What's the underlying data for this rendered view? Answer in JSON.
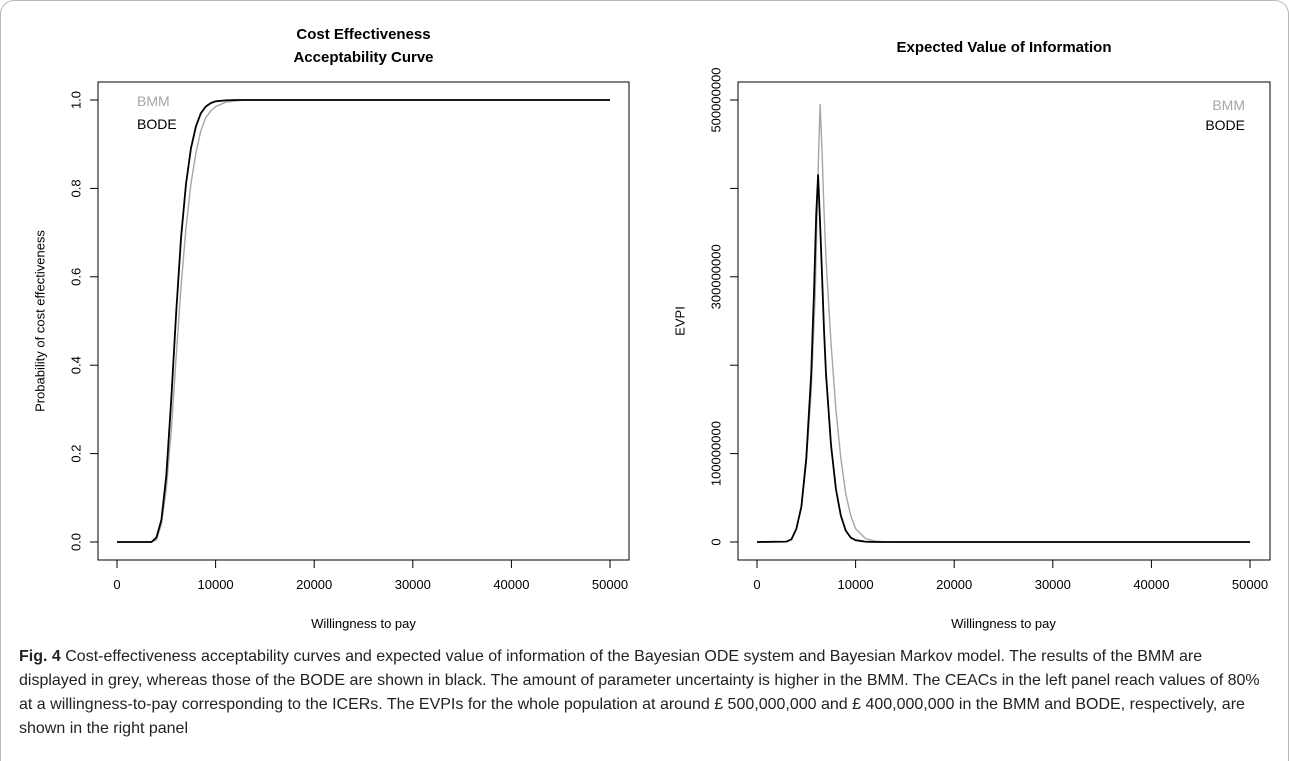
{
  "caption": {
    "label": "Fig. 4",
    "text": "Cost-effectiveness acceptability curves and expected value of information of the Bayesian ODE system and Bayesian Markov model. The results of the BMM are displayed in grey, whereas those of the BODE are shown in black. The amount of parameter uncertainty is higher in the BMM. The CEACs in the left panel reach values of 80% at a willingness-to-pay corresponding to the ICERs. The EVPIs for the whole population at around £ 500,000,000 and £ 400,000,000 in the BMM and BODE, respectively, are shown in the right panel"
  },
  "colors": {
    "bmm": "#a6a6a6",
    "bode": "#000000",
    "frame": "#b8b8b8"
  },
  "chart_data": [
    {
      "type": "line",
      "title_lines": [
        "Cost Effectiveness",
        "Acceptability Curve"
      ],
      "xlabel": "Willingness to pay",
      "ylabel": "Probability of cost effectiveness",
      "xlim": [
        0,
        50000
      ],
      "ylim": [
        0,
        1
      ],
      "xticks": [
        0,
        10000,
        20000,
        30000,
        40000,
        50000
      ],
      "xtick_labels": [
        "0",
        "10000",
        "20000",
        "30000",
        "40000",
        "50000"
      ],
      "yticks": [
        0,
        0.2,
        0.4,
        0.6,
        0.8,
        1.0
      ],
      "ytick_labels": [
        "0.0",
        "0.2",
        "0.4",
        "0.6",
        "0.8",
        "1.0"
      ],
      "grid": false,
      "legend_position": "top-left",
      "series": [
        {
          "name": "BMM",
          "color": "#a6a6a6",
          "x": [
            0,
            3500,
            4000,
            4500,
            5000,
            5500,
            6000,
            6500,
            7000,
            7500,
            8000,
            8500,
            9000,
            9500,
            10000,
            11000,
            12000,
            13000,
            15000,
            50000
          ],
          "y": [
            0,
            0,
            0.005,
            0.04,
            0.12,
            0.25,
            0.42,
            0.58,
            0.71,
            0.81,
            0.88,
            0.93,
            0.96,
            0.975,
            0.985,
            0.995,
            0.998,
            1.0,
            1.0,
            1.0
          ]
        },
        {
          "name": "BODE",
          "color": "#000000",
          "x": [
            0,
            3500,
            4000,
            4500,
            5000,
            5500,
            6000,
            6500,
            7000,
            7500,
            8000,
            8500,
            9000,
            9500,
            10000,
            11000,
            12000,
            15000,
            50000
          ],
          "y": [
            0,
            0,
            0.01,
            0.05,
            0.15,
            0.32,
            0.52,
            0.69,
            0.81,
            0.89,
            0.94,
            0.97,
            0.985,
            0.993,
            0.997,
            0.999,
            1.0,
            1.0,
            1.0
          ]
        }
      ]
    },
    {
      "type": "line",
      "title_lines": [
        "Expected Value of Information"
      ],
      "xlabel": "Willingness to pay",
      "ylabel": "EVPI",
      "xlim": [
        0,
        50000
      ],
      "ylim": [
        0,
        500000000
      ],
      "xticks": [
        0,
        10000,
        20000,
        30000,
        40000,
        50000
      ],
      "xtick_labels": [
        "0",
        "10000",
        "20000",
        "30000",
        "40000",
        "50000"
      ],
      "yticks": [
        0,
        100000000,
        200000000,
        300000000,
        400000000,
        500000000
      ],
      "ytick_labels": [
        "0",
        "100000000",
        "",
        "300000000",
        "",
        "500000000"
      ],
      "grid": false,
      "legend_position": "top-right",
      "series": [
        {
          "name": "BMM",
          "color": "#a6a6a6",
          "x": [
            0,
            3000,
            3500,
            4000,
            4500,
            5000,
            5500,
            5900,
            6200,
            6400,
            6600,
            6800,
            7000,
            7500,
            8000,
            8500,
            9000,
            9500,
            10000,
            11000,
            12000,
            13000,
            14000,
            50000
          ],
          "y": [
            0,
            500000,
            3000000,
            15000000,
            40000000,
            90000000,
            170000000,
            280000000,
            420000000,
            495000000,
            440000000,
            375000000,
            320000000,
            225000000,
            150000000,
            95000000,
            55000000,
            30000000,
            15000000,
            4000000,
            1000000,
            200000,
            0,
            0
          ]
        },
        {
          "name": "BODE",
          "color": "#000000",
          "x": [
            0,
            3000,
            3500,
            4000,
            4500,
            5000,
            5500,
            5800,
            6000,
            6200,
            6400,
            6600,
            6800,
            7000,
            7500,
            8000,
            8500,
            9000,
            9500,
            10000,
            11000,
            12000,
            13000,
            50000
          ],
          "y": [
            0,
            500000,
            3000000,
            15000000,
            40000000,
            95000000,
            190000000,
            290000000,
            370000000,
            415000000,
            360000000,
            300000000,
            240000000,
            190000000,
            110000000,
            60000000,
            30000000,
            13000000,
            5000000,
            2000000,
            300000,
            0,
            0,
            0
          ]
        }
      ]
    }
  ]
}
